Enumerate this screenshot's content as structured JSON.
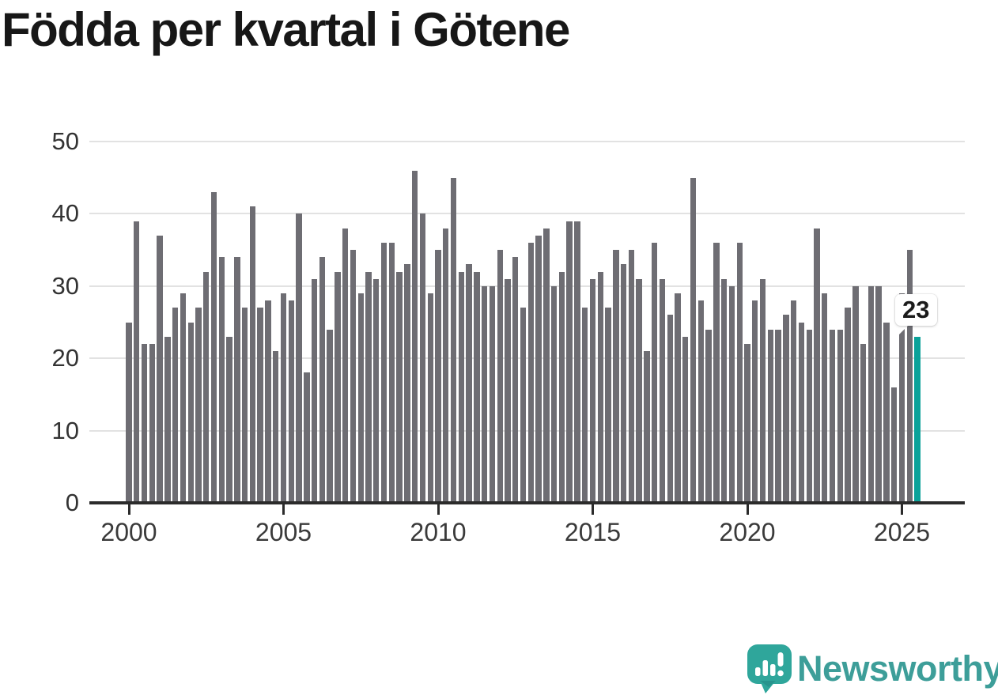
{
  "title": "Födda per kvartal i Götene",
  "callout": {
    "value_label": "23"
  },
  "branding": {
    "name": "Newsworthy"
  },
  "colors": {
    "bar": "#6e6d73",
    "highlight": "#0ba29a",
    "gridline": "#e2e2e2",
    "axis": "#2b2b2b",
    "tick_label": "#3a3a3a",
    "title": "#171717",
    "logo": "#3d9e99",
    "background": "#ffffff"
  },
  "chart_data": {
    "type": "bar",
    "title": "Födda per kvartal i Götene",
    "xlabel": "",
    "ylabel": "",
    "ylim": [
      0,
      50
    ],
    "y_ticks": [
      0,
      10,
      20,
      30,
      40,
      50
    ],
    "x_tick_labels": [
      "2000",
      "2005",
      "2010",
      "2015",
      "2020",
      "2025"
    ],
    "x_tick_quarter_indices": [
      0,
      20,
      40,
      60,
      80,
      100
    ],
    "grid": "horizontal",
    "legend": "none",
    "highlight_last_bar": true,
    "values_by_year": {
      "2000": [
        25,
        39,
        22,
        22
      ],
      "2001": [
        37,
        23,
        27,
        29
      ],
      "2002": [
        25,
        27,
        32,
        43
      ],
      "2003": [
        34,
        23,
        34,
        27
      ],
      "2004": [
        41,
        27,
        28,
        21
      ],
      "2005": [
        29,
        28,
        40,
        18
      ],
      "2006": [
        31,
        34,
        24,
        32
      ],
      "2007": [
        38,
        35,
        29,
        32
      ],
      "2008": [
        31,
        36,
        36,
        32
      ],
      "2009": [
        33,
        46,
        40,
        29
      ],
      "2010": [
        35,
        38,
        45,
        32
      ],
      "2011": [
        33,
        32,
        30,
        30
      ],
      "2012": [
        35,
        31,
        34,
        27
      ],
      "2013": [
        36,
        37,
        38,
        30
      ],
      "2014": [
        32,
        39,
        39,
        27
      ],
      "2015": [
        31,
        32,
        27,
        35
      ],
      "2016": [
        33,
        35,
        31,
        21
      ],
      "2017": [
        36,
        31,
        26,
        29
      ],
      "2018": [
        23,
        45,
        28,
        24
      ],
      "2019": [
        36,
        31,
        30,
        36
      ],
      "2020": [
        22,
        28,
        31,
        24
      ],
      "2021": [
        24,
        26,
        28,
        25
      ],
      "2022": [
        24,
        38,
        29,
        24
      ],
      "2023": [
        24,
        27,
        30,
        22
      ],
      "2024": [
        30,
        30,
        25,
        16
      ],
      "2025": [
        29,
        35,
        23
      ]
    },
    "last_point": {
      "x": "2025-Q3",
      "y": 23
    }
  }
}
